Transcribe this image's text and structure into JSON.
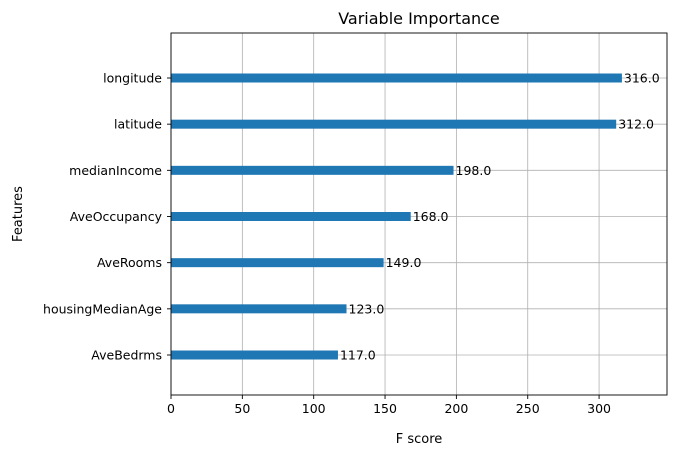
{
  "chart_data": {
    "type": "bar",
    "orientation": "horizontal",
    "title": "Variable Importance",
    "xlabel": "F score",
    "ylabel": "Features",
    "categories": [
      "AveBedrms",
      "housingMedianAge",
      "AveRooms",
      "AveOccupancy",
      "medianIncome",
      "latitude",
      "longitude"
    ],
    "values": [
      117.0,
      123.0,
      149.0,
      168.0,
      198.0,
      312.0,
      316.0
    ],
    "value_labels": [
      "117.0",
      "123.0",
      "149.0",
      "168.0",
      "198.0",
      "312.0",
      "316.0"
    ],
    "xlim": [
      0,
      347.6
    ],
    "xticks": [
      0,
      50,
      100,
      150,
      200,
      250,
      300
    ],
    "grid": true,
    "bar_color": "#1f77b4"
  }
}
